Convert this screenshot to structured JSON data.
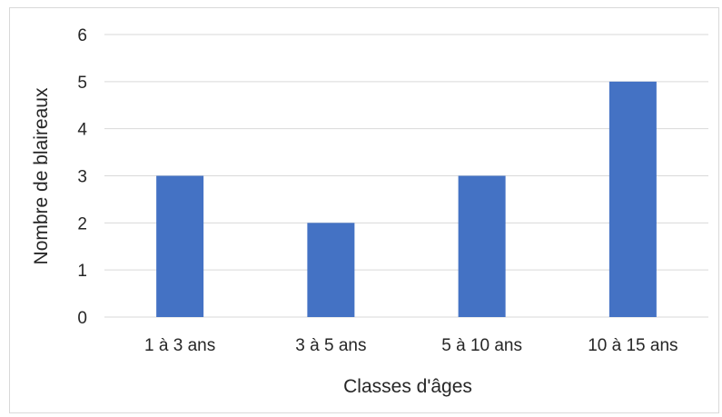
{
  "chart_data": {
    "type": "bar",
    "categories": [
      "1 à 3 ans",
      "3 à 5 ans",
      "5 à 10 ans",
      "10 à 15 ans"
    ],
    "values": [
      3,
      2,
      3,
      5
    ],
    "xlabel": "Classes d'âges",
    "ylabel": "Nombre de blaireaux",
    "ylim": [
      0,
      6
    ],
    "yticks": [
      0,
      1,
      2,
      3,
      4,
      5,
      6
    ],
    "grid": true,
    "bar_color": "#4472c4",
    "grid_color": "#d9d9d9"
  }
}
